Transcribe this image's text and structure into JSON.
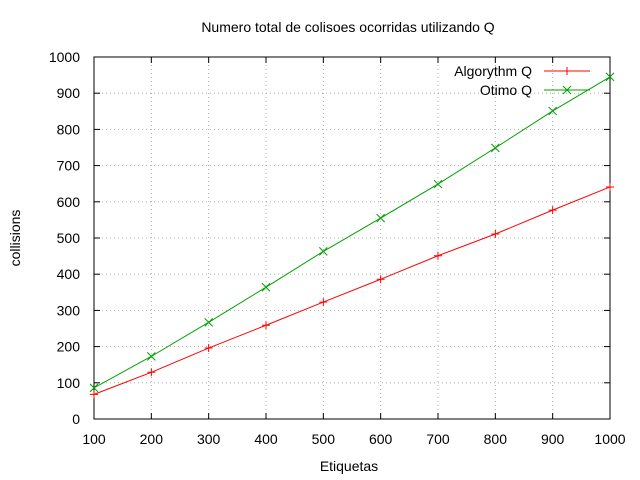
{
  "chart_data": {
    "type": "line",
    "title": "Numero total de colisoes ocorridas utilizando Q",
    "xlabel": "Etiquetas",
    "ylabel": "collisions",
    "xlim": [
      100,
      1000
    ],
    "ylim": [
      0,
      1000
    ],
    "xticks": [
      100,
      200,
      300,
      400,
      500,
      600,
      700,
      800,
      900,
      1000
    ],
    "yticks": [
      0,
      100,
      200,
      300,
      400,
      500,
      600,
      700,
      800,
      900,
      1000
    ],
    "grid": true,
    "legend_position": "top-right",
    "x": [
      100,
      200,
      300,
      400,
      500,
      600,
      700,
      800,
      900,
      1000
    ],
    "series": [
      {
        "name": "Algorythm Q",
        "color": "#ff0000",
        "marker": "plus",
        "values": [
          68,
          129,
          196,
          259,
          323,
          386,
          451,
          511,
          577,
          641
        ]
      },
      {
        "name": "Otimo Q",
        "color": "#00a000",
        "marker": "cross",
        "values": [
          86,
          173,
          267,
          364,
          463,
          555,
          649,
          749,
          851,
          945
        ]
      }
    ]
  }
}
